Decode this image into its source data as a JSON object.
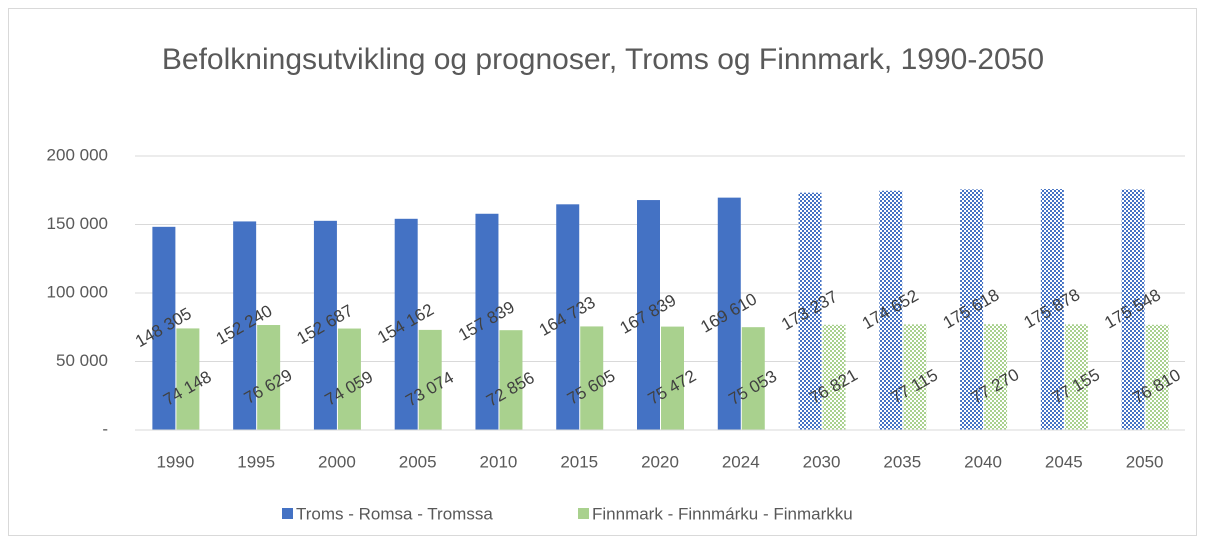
{
  "chart_data": {
    "type": "bar",
    "title": "Befolkningsutvikling og prognoser, Troms og Finnmark, 1990-2050",
    "categories": [
      "1990",
      "1995",
      "2000",
      "2005",
      "2010",
      "2015",
      "2020",
      "2024",
      "2030",
      "2035",
      "2040",
      "2045",
      "2050"
    ],
    "patterned": [
      false,
      false,
      false,
      false,
      false,
      false,
      false,
      false,
      true,
      true,
      true,
      true,
      true
    ],
    "series": [
      {
        "name": "Troms - Romsa - Tromssa",
        "color": "#4472c4",
        "values": [
          148305,
          152240,
          152687,
          154162,
          157839,
          164733,
          167839,
          169610,
          173237,
          174652,
          175618,
          175878,
          175548
        ],
        "value_labels": [
          "148 305",
          "152 240",
          "152 687",
          "154 162",
          "157 839",
          "164 733",
          "167 839",
          "169 610",
          "173 237",
          "174 652",
          "175 618",
          "175 878",
          "175 548"
        ]
      },
      {
        "name": "Finnmark - Finnmárku - Finmarkku",
        "color": "#a9d18e",
        "values": [
          74148,
          76629,
          74059,
          73074,
          72856,
          75605,
          75472,
          75053,
          76821,
          77115,
          77270,
          77155,
          76810
        ],
        "value_labels": [
          "74 148",
          "76 629",
          "74 059",
          "73 074",
          "72 856",
          "75 605",
          "75 472",
          "75 053",
          "76 821",
          "77 115",
          "77 270",
          "77 155",
          "76 810"
        ]
      }
    ],
    "ylim": [
      0,
      200000
    ],
    "yticks": [
      {
        "value": 0,
        "label": "-"
      },
      {
        "value": 50000,
        "label": "50 000"
      },
      {
        "value": 100000,
        "label": "100 000"
      },
      {
        "value": 150000,
        "label": "150 000"
      },
      {
        "value": 200000,
        "label": "200 000"
      }
    ],
    "grid": true,
    "legend": "bottom"
  }
}
